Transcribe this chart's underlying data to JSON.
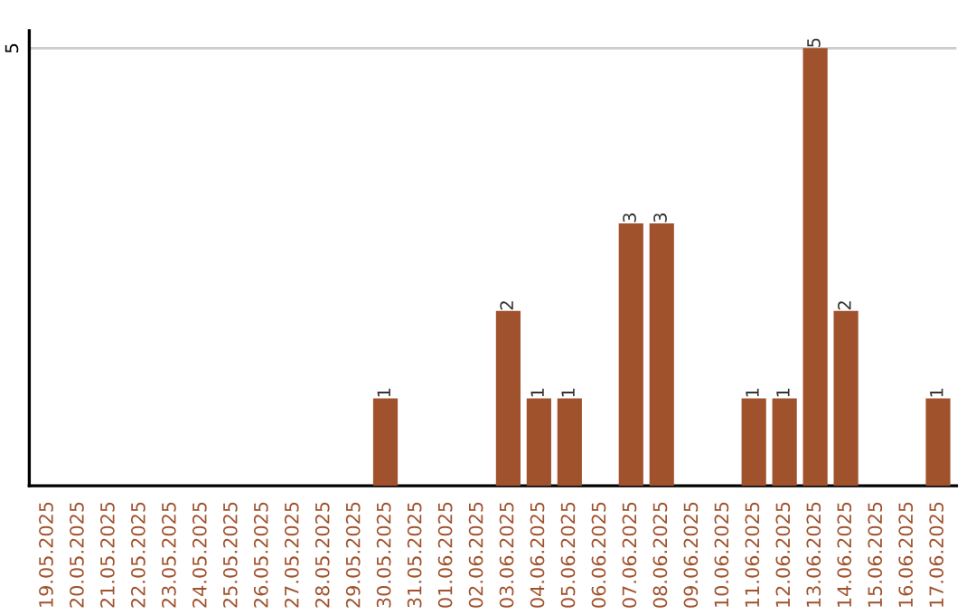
{
  "chart_data": {
    "type": "bar",
    "categories": [
      "19.05.2025",
      "20.05.2025",
      "21.05.2025",
      "22.05.2025",
      "23.05.2025",
      "24.05.2025",
      "25.05.2025",
      "26.05.2025",
      "27.05.2025",
      "28.05.2025",
      "29.05.2025",
      "30.05.2025",
      "31.05.2025",
      "01.06.2025",
      "02.06.2025",
      "03.06.2025",
      "04.06.2025",
      "05.06.2025",
      "06.06.2025",
      "07.06.2025",
      "08.06.2025",
      "09.06.2025",
      "10.06.2025",
      "11.06.2025",
      "12.06.2025",
      "13.06.2025",
      "14.06.2025",
      "15.06.2025",
      "16.06.2025",
      "17.06.2025"
    ],
    "values": [
      0,
      0,
      0,
      0,
      0,
      0,
      0,
      0,
      0,
      0,
      0,
      1,
      0,
      0,
      0,
      2,
      1,
      1,
      0,
      3,
      3,
      0,
      0,
      1,
      1,
      5,
      2,
      0,
      0,
      1
    ],
    "value_labels": [
      null,
      null,
      null,
      null,
      null,
      null,
      null,
      null,
      null,
      null,
      null,
      "1",
      null,
      null,
      null,
      "2",
      "1",
      "1",
      null,
      "3",
      "3",
      null,
      null,
      "1",
      "1",
      "5",
      "2",
      null,
      null,
      "1"
    ],
    "color": "#a0522d",
    "ylim": [
      0,
      5.2
    ],
    "yticks": [
      5
    ],
    "grid": "y"
  }
}
